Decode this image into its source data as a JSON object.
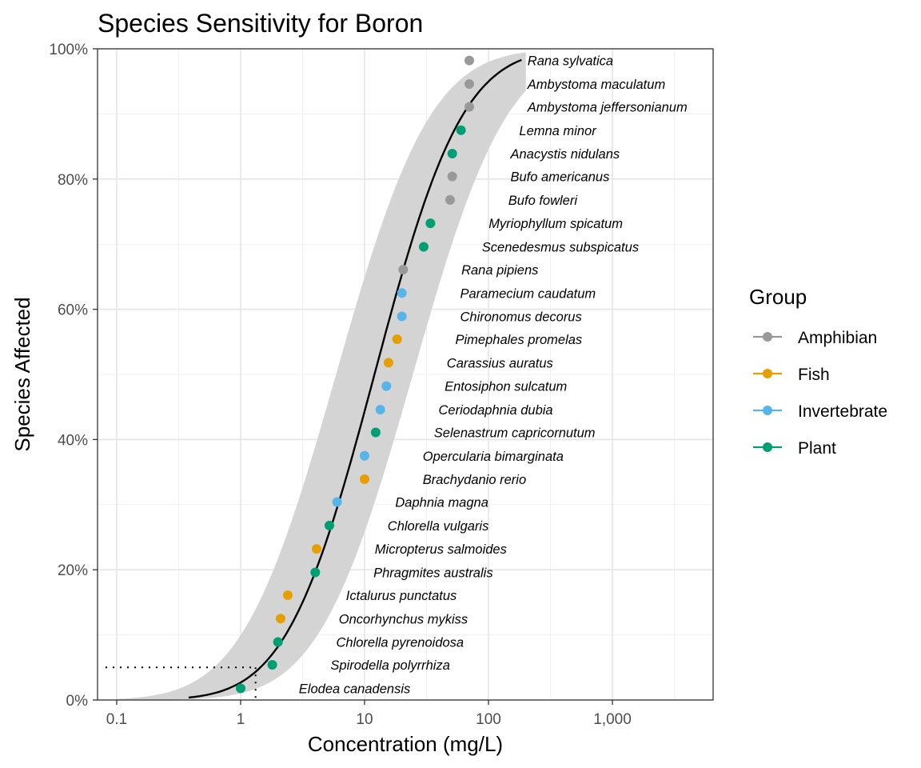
{
  "chart_data": {
    "type": "scatter",
    "title": "Species Sensitivity for Boron",
    "xlabel": "Concentration (mg/L)",
    "ylabel": "Species Affected",
    "x_scale": "log10",
    "xlim": [
      0.07,
      6500
    ],
    "ylim": [
      0,
      1
    ],
    "x_ticks": [
      0.1,
      1,
      10,
      100,
      1000
    ],
    "x_tick_labels": [
      "0.1",
      "1",
      "10",
      "100",
      "1,000"
    ],
    "y_ticks": [
      0,
      0.2,
      0.4,
      0.6,
      0.8,
      1.0
    ],
    "y_tick_labels": [
      "0%",
      "20%",
      "40%",
      "60%",
      "80%",
      "100%"
    ],
    "grid": true,
    "legend": {
      "title": "Group",
      "position": "right",
      "entries": [
        {
          "name": "Amphibian",
          "color": "#999999"
        },
        {
          "name": "Fish",
          "color": "#E69F00"
        },
        {
          "name": "Invertebrate",
          "color": "#56B4E9"
        },
        {
          "name": "Plant",
          "color": "#009E73"
        }
      ]
    },
    "points": [
      {
        "species": "Elodea canadensis",
        "group": "Plant",
        "conc": 1.0,
        "prop": 0.018
      },
      {
        "species": "Spirodella polyrrhiza",
        "group": "Plant",
        "conc": 1.8,
        "prop": 0.054
      },
      {
        "species": "Chlorella pyrenoidosa",
        "group": "Plant",
        "conc": 2.0,
        "prop": 0.089
      },
      {
        "species": "Oncorhynchus mykiss",
        "group": "Fish",
        "conc": 2.1,
        "prop": 0.125
      },
      {
        "species": "Ictalurus punctatus",
        "group": "Fish",
        "conc": 2.4,
        "prop": 0.161
      },
      {
        "species": "Phragmites australis",
        "group": "Plant",
        "conc": 4.0,
        "prop": 0.196
      },
      {
        "species": "Micropterus salmoides",
        "group": "Fish",
        "conc": 4.1,
        "prop": 0.232
      },
      {
        "species": "Chlorella vulgaris",
        "group": "Plant",
        "conc": 5.2,
        "prop": 0.268
      },
      {
        "species": "Daphnia magna",
        "group": "Invertebrate",
        "conc": 6.0,
        "prop": 0.304
      },
      {
        "species": "Brachydanio rerio",
        "group": "Fish",
        "conc": 10.0,
        "prop": 0.339
      },
      {
        "species": "Opercularia bimarginata",
        "group": "Invertebrate",
        "conc": 10.0,
        "prop": 0.375
      },
      {
        "species": "Selenastrum capricornutum",
        "group": "Plant",
        "conc": 12.3,
        "prop": 0.411
      },
      {
        "species": "Ceriodaphnia dubia",
        "group": "Invertebrate",
        "conc": 13.4,
        "prop": 0.446
      },
      {
        "species": "Entosiphon sulcatum",
        "group": "Invertebrate",
        "conc": 15.0,
        "prop": 0.482
      },
      {
        "species": "Carassius auratus",
        "group": "Fish",
        "conc": 15.6,
        "prop": 0.518
      },
      {
        "species": "Pimephales promelas",
        "group": "Fish",
        "conc": 18.3,
        "prop": 0.554
      },
      {
        "species": "Chironomus decorus",
        "group": "Invertebrate",
        "conc": 20.0,
        "prop": 0.589
      },
      {
        "species": "Paramecium caudatum",
        "group": "Invertebrate",
        "conc": 20.0,
        "prop": 0.625
      },
      {
        "species": "Rana pipiens",
        "group": "Amphibian",
        "conc": 20.5,
        "prop": 0.661
      },
      {
        "species": "Scenedesmus subspicatus",
        "group": "Plant",
        "conc": 30.0,
        "prop": 0.696
      },
      {
        "species": "Myriophyllum spicatum",
        "group": "Plant",
        "conc": 34.0,
        "prop": 0.732
      },
      {
        "species": "Bufo fowleri",
        "group": "Amphibian",
        "conc": 49.0,
        "prop": 0.768
      },
      {
        "species": "Bufo americanus",
        "group": "Amphibian",
        "conc": 51.0,
        "prop": 0.804
      },
      {
        "species": "Anacystis nidulans",
        "group": "Plant",
        "conc": 51.0,
        "prop": 0.839
      },
      {
        "species": "Lemna minor",
        "group": "Plant",
        "conc": 60.0,
        "prop": 0.875
      },
      {
        "species": "Ambystoma jeffersonianum",
        "group": "Amphibian",
        "conc": 70.0,
        "prop": 0.911
      },
      {
        "species": "Ambystoma maculatum",
        "group": "Amphibian",
        "conc": 70.0,
        "prop": 0.946
      },
      {
        "species": "Rana sylvatica",
        "group": "Amphibian",
        "conc": 70.0,
        "prop": 0.982
      }
    ],
    "fit": {
      "distribution": "lognormal",
      "meanlog10": 1.08,
      "sdlog10": 0.56,
      "x_range": [
        0.38,
        185
      ]
    },
    "confidence_band": {
      "lower_meanlog10": 1.39,
      "upper_meanlog10": 0.77,
      "sdlog10": 0.6,
      "x_range": [
        0.1,
        200
      ]
    },
    "hc5": {
      "conc": 1.32,
      "prop": 0.05
    }
  }
}
